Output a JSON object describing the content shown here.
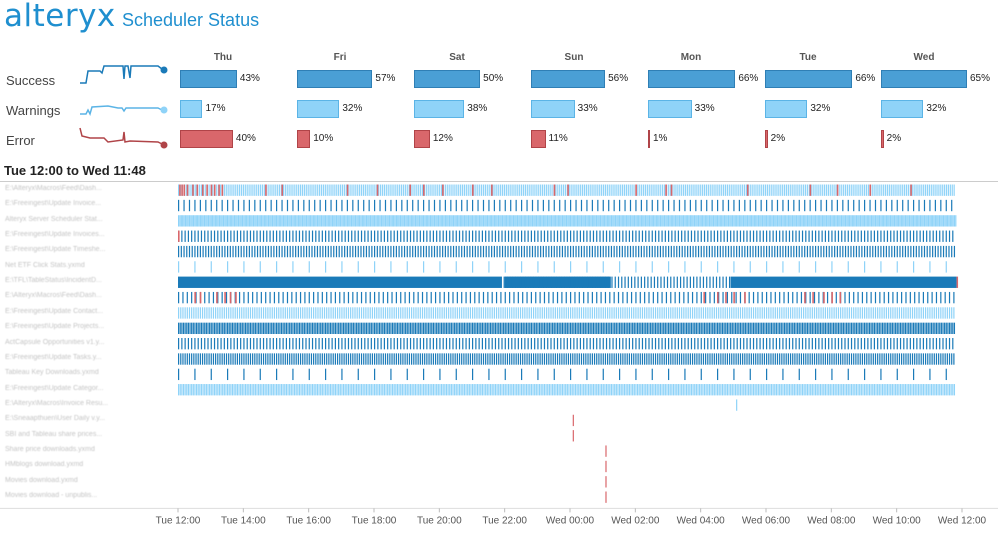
{
  "header": {
    "logo": "alteryx",
    "title": "Scheduler Status"
  },
  "summary": {
    "days": [
      "Thu",
      "Fri",
      "Sat",
      "Sun",
      "Mon",
      "Tue",
      "Wed"
    ],
    "rows": [
      {
        "label": "Success",
        "values": [
          43,
          57,
          50,
          56,
          66,
          66,
          65
        ],
        "pct_labels": [
          "43%",
          "57%",
          "50%",
          "56%",
          "66%",
          "66%",
          "65%"
        ]
      },
      {
        "label": "Warnings",
        "values": [
          17,
          32,
          38,
          33,
          33,
          32,
          32
        ],
        "pct_labels": [
          "17%",
          "32%",
          "38%",
          "33%",
          "33%",
          "32%",
          "32%"
        ]
      },
      {
        "label": "Error",
        "values": [
          40,
          10,
          12,
          11,
          1,
          2,
          2
        ],
        "pct_labels": [
          "40%",
          "10%",
          "12%",
          "11%",
          "1%",
          "2%",
          "2%"
        ]
      }
    ]
  },
  "colors": {
    "success": "#4a9fd5",
    "success_border": "#2f7fb5",
    "warning": "#8fd3f8",
    "warning_border": "#5bb4e6",
    "error": "#d9676b",
    "error_border": "#b04448",
    "brand": "#1f8fcf",
    "dark_blue": "#1a7ab8"
  },
  "chart_data": {
    "type": "timeline",
    "title": "Tue 12:00 to Wed 11:48",
    "x_ticks": [
      "Tue 12:00",
      "Tue 14:00",
      "Tue 16:00",
      "Tue 18:00",
      "Tue 20:00",
      "Tue 22:00",
      "Wed 00:00",
      "Wed 02:00",
      "Wed 04:00",
      "Wed 06:00",
      "Wed 08:00",
      "Wed 10:00",
      "Wed 12:00"
    ],
    "x_range_hours": [
      0,
      24
    ],
    "tasks": [
      {
        "name": "E:\\Alteryx\\Macros\\Feed\\Dash...",
        "interval_min": 3.5,
        "status": "warning",
        "errors_at_min": [
          2,
          6,
          10,
          16,
          26,
          34,
          44,
          52,
          60,
          66,
          74,
          80,
          160,
          190,
          310,
          365,
          425,
          450,
          485,
          540,
          575,
          690,
          715,
          840,
          895,
          905,
          1045,
          1160,
          1210,
          1270,
          1345
        ]
      },
      {
        "name": "E:\\Freeingest\\Update Invoice...",
        "interval_min": 10,
        "status": "success"
      },
      {
        "name": "Alteryx Server Scheduler Stat...",
        "interval_min": 2.5,
        "status": "warning"
      },
      {
        "name": "E:\\Freeingest\\Update Invoices...",
        "interval_min": 6,
        "status": "success",
        "errors_at_min": [
          0
        ]
      },
      {
        "name": "E:\\Freeingest\\Update Timeshe...",
        "interval_min": 5,
        "status": "success"
      },
      {
        "name": "Net ETF Click Stats.yxmd",
        "interval_min": 30,
        "status": "warning"
      },
      {
        "name": "E:\\TFL\\TableStatus\\IncidentD...",
        "status": "continuous",
        "blocks_min": [
          [
            0,
            595
          ],
          [
            600,
            795
          ],
          [
            1015,
            1430
          ]
        ],
        "error_end_min": 1430
      },
      {
        "name": "E:\\Alteryx\\Macros\\Feed\\Dash...",
        "interval_min": 8,
        "status": "success",
        "errors_at_min": [
          30,
          40,
          70,
          85,
          95,
          105,
          965,
          990,
          1005,
          1020,
          1040,
          1150,
          1165,
          1185,
          1200,
          1215
        ]
      },
      {
        "name": "E:\\Freeingest\\Update Contact...",
        "interval_min": 4,
        "status": "warning"
      },
      {
        "name": "E:\\Freeingest\\Update Projects...",
        "interval_min": 3,
        "status": "success"
      },
      {
        "name": "ActCapsule Opportunities v1.y...",
        "interval_min": 6,
        "status": "success"
      },
      {
        "name": "E:\\Freeingest\\Update Tasks.y...",
        "interval_min": 4,
        "status": "success"
      },
      {
        "name": "Tableau Key Downloads.yxmd",
        "interval_min": 30,
        "status": "success"
      },
      {
        "name": "E:\\Freeingest\\Update Categor...",
        "interval_min": 3,
        "status": "warning"
      },
      {
        "name": "E:\\Alteryx\\Macros\\Invoice Resu...",
        "runs_at_min": [
          1025
        ],
        "status": "warning"
      },
      {
        "name": "E:\\Sneaapthuen\\User Daily v.y...",
        "runs_at_min": [
          725
        ],
        "status": "error"
      },
      {
        "name": "SBI and Tableau share prices...",
        "runs_at_min": [
          725
        ],
        "status": "error"
      },
      {
        "name": "Share price downloads.yxmd",
        "runs_at_min": [
          785
        ],
        "status": "error"
      },
      {
        "name": "HMblogs download.yxmd",
        "runs_at_min": [
          785
        ],
        "status": "error"
      },
      {
        "name": "Movies download.yxmd",
        "runs_at_min": [
          785
        ],
        "status": "error"
      },
      {
        "name": "Movies download - unpublis...",
        "runs_at_min": [
          785
        ],
        "status": "error"
      }
    ]
  }
}
